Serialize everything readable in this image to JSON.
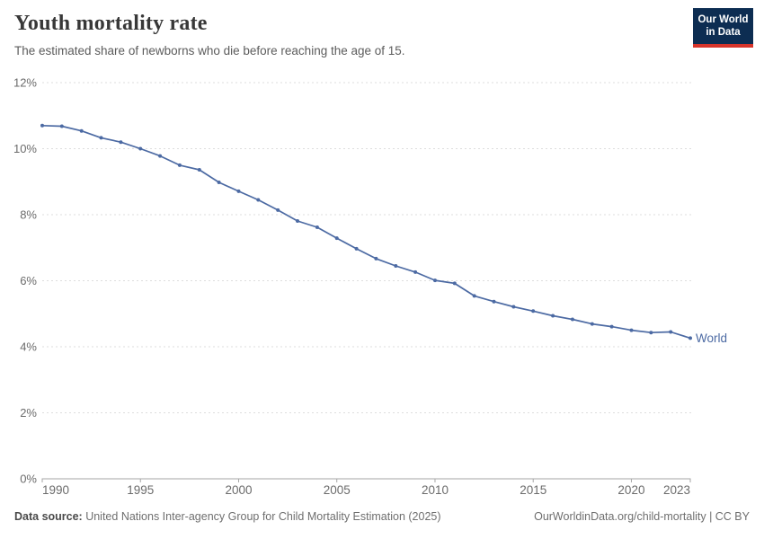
{
  "header": {
    "title": "Youth mortality rate",
    "subtitle": "The estimated share of newborns who die before reaching the age of 15.",
    "logo": {
      "line1": "Our World",
      "line2": "in Data"
    }
  },
  "chart_data": {
    "type": "line",
    "title": "Youth mortality rate",
    "xlabel": "",
    "ylabel": "",
    "xlim": [
      1990,
      2023
    ],
    "ylim": [
      0,
      12
    ],
    "grid": "horizontal-dashed",
    "legend_position": "end-of-line-label",
    "x_ticks": [
      1990,
      1995,
      2000,
      2005,
      2010,
      2015,
      2020,
      2023
    ],
    "x_tick_labels": [
      "1990",
      "1995",
      "2000",
      "2005",
      "2010",
      "2015",
      "2020",
      "2023"
    ],
    "y_ticks": [
      0,
      2,
      4,
      6,
      8,
      10,
      12
    ],
    "y_tick_labels": [
      "0%",
      "2%",
      "4%",
      "6%",
      "8%",
      "10%",
      "12%"
    ],
    "series": [
      {
        "name": "World",
        "color": "#4c6aa3",
        "x": [
          1990,
          1991,
          1992,
          1993,
          1994,
          1995,
          1996,
          1997,
          1998,
          1999,
          2000,
          2001,
          2002,
          2003,
          2004,
          2005,
          2006,
          2007,
          2008,
          2009,
          2010,
          2011,
          2012,
          2013,
          2014,
          2015,
          2016,
          2017,
          2018,
          2019,
          2020,
          2021,
          2022,
          2023
        ],
        "values": [
          10.7,
          10.68,
          10.54,
          10.33,
          10.2,
          10.0,
          9.78,
          9.5,
          9.36,
          8.98,
          8.71,
          8.45,
          8.14,
          7.81,
          7.62,
          7.29,
          6.97,
          6.67,
          6.45,
          6.26,
          6.01,
          5.92,
          5.54,
          5.37,
          5.21,
          5.08,
          4.94,
          4.83,
          4.69,
          4.61,
          4.5,
          4.43,
          4.45,
          4.26
        ]
      }
    ]
  },
  "footer": {
    "source_label": "Data source:",
    "source_text": " United Nations Inter-agency Group for Child Mortality Estimation (2025)",
    "link_text": "OurWorldinData.org/child-mortality | CC BY"
  },
  "colors": {
    "line": "#4c6aa3",
    "grid": "#dddddd",
    "axis": "#a6a6a6",
    "tick_text": "#6b6b6b",
    "logo_bg": "#0d2d52",
    "logo_red": "#d7342a"
  }
}
